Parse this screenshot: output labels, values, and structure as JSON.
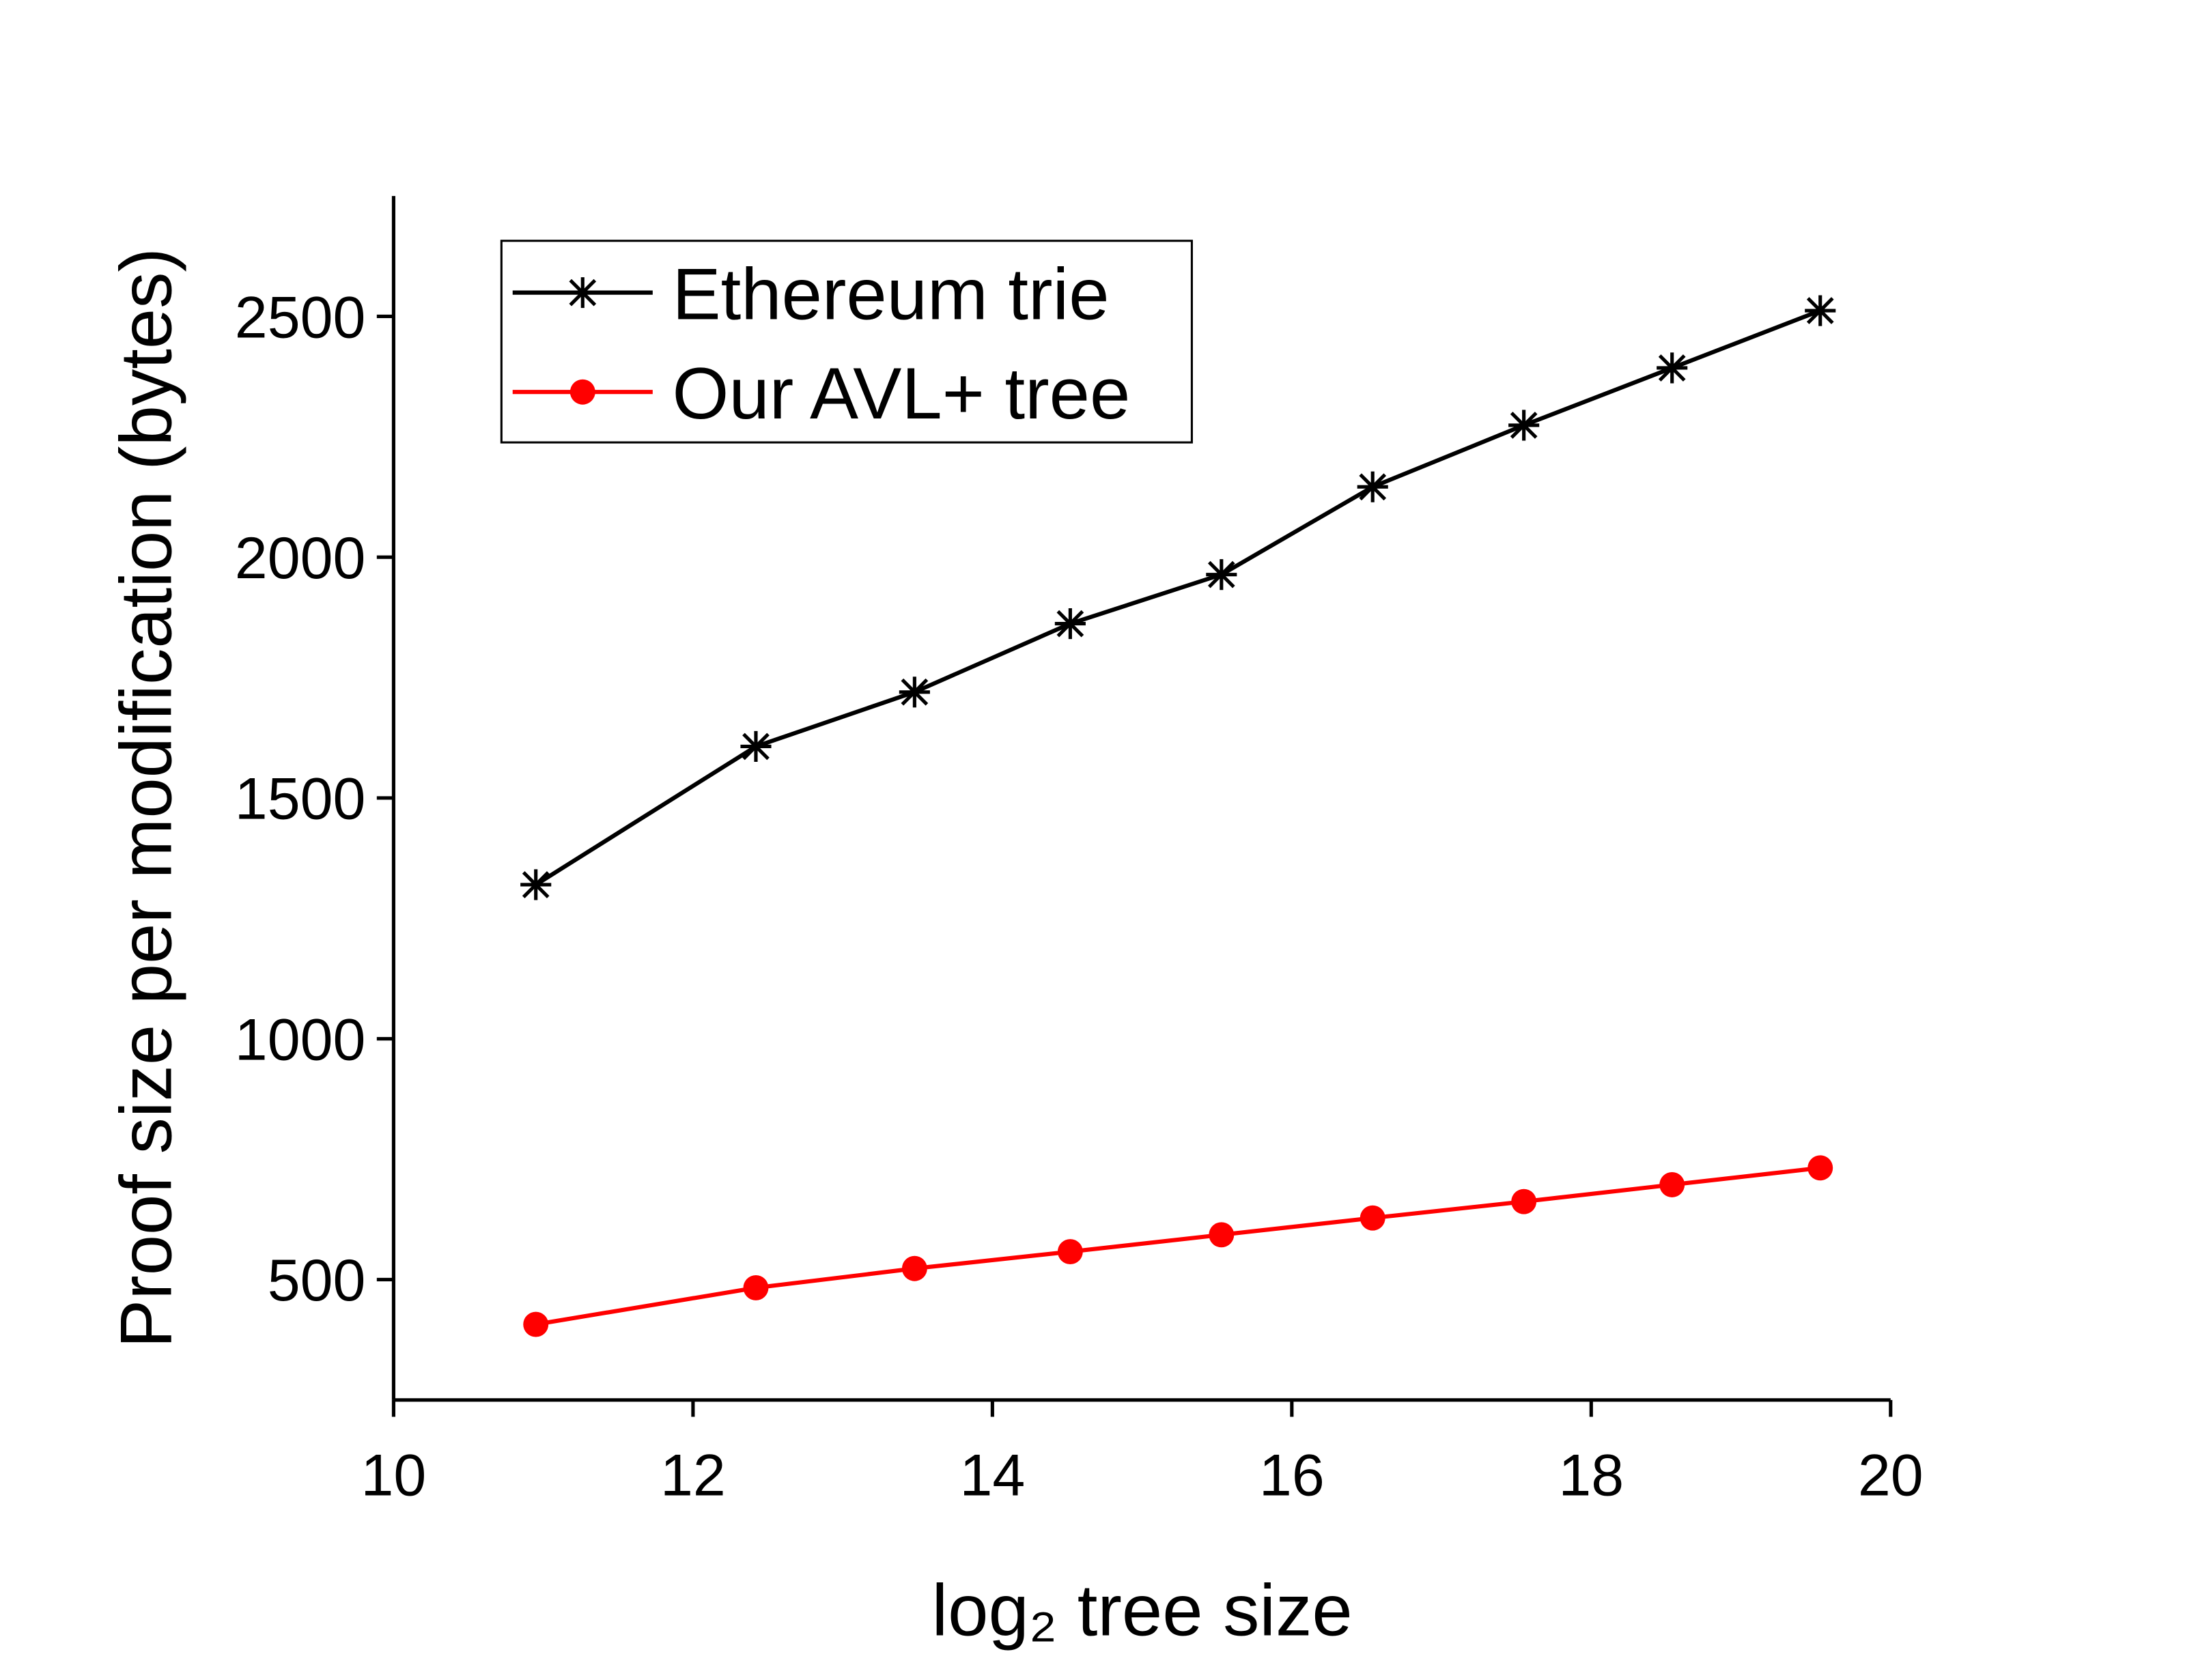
{
  "chart_data": {
    "type": "line",
    "xlabel": "log₂ tree size",
    "ylabel": "Proof size per modification (bytes)",
    "x": [
      10.95,
      12.42,
      13.48,
      14.52,
      15.53,
      16.54,
      17.55,
      18.54,
      19.53
    ],
    "series": [
      {
        "name": "Ethereum trie",
        "color": "#000000",
        "marker": "star",
        "values": [
          1320,
          1607,
          1720,
          1862,
          1964,
          2146,
          2274,
          2393,
          2512
        ]
      },
      {
        "name": "Our AVL+ tree",
        "color": "#ff0000",
        "marker": "circle",
        "values": [
          407,
          483,
          523,
          558,
          593,
          628,
          662,
          697,
          732
        ]
      }
    ],
    "xlim": [
      10,
      20
    ],
    "xticks": [
      10,
      12,
      14,
      16,
      18,
      20
    ],
    "ylim": [
      250,
      2750
    ],
    "yticks": [
      500,
      1000,
      1500,
      2000,
      2500
    ],
    "legend": "upper-left",
    "grid": false
  }
}
